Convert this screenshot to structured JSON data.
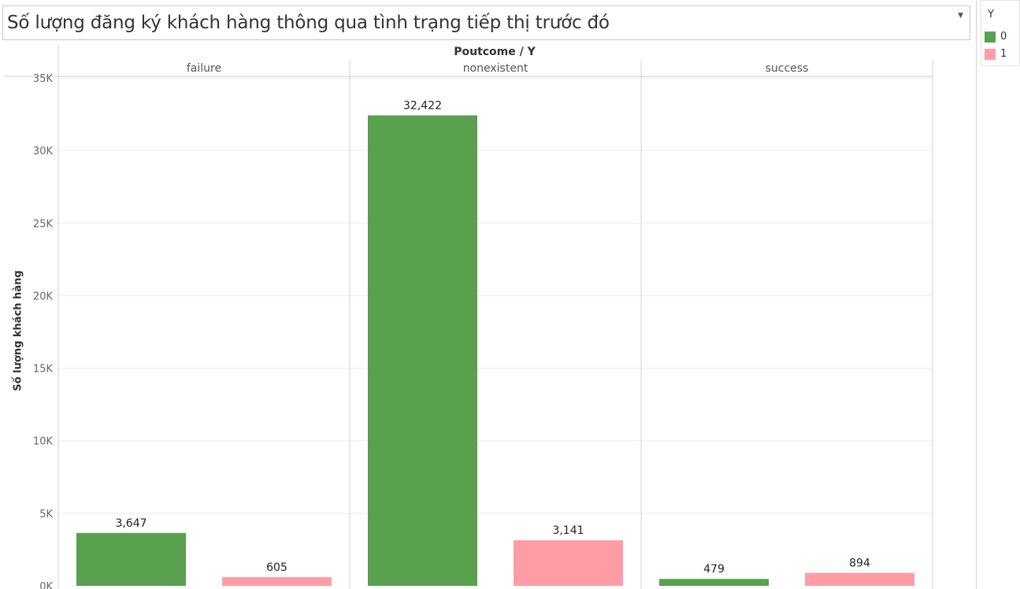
{
  "dashboard": {
    "title": "Số lượng đăng ký khách hàng thông qua tình trạng tiếp thị trước đó",
    "header": "Poutcome / Y",
    "y_axis_label": "Số lượng khách hàng"
  },
  "legend": {
    "title": "Y",
    "items": [
      {
        "label": "0",
        "color": "#59a14f"
      },
      {
        "label": "1",
        "color": "#ff9da7"
      }
    ]
  },
  "chart_data": {
    "type": "bar",
    "categories": [
      "failure",
      "nonexistent",
      "success"
    ],
    "series": [
      {
        "name": "0",
        "color": "#59a14f",
        "values": [
          3647,
          32422,
          479
        ],
        "labels": [
          "3,647",
          "32,422",
          "479"
        ]
      },
      {
        "name": "1",
        "color": "#ff9da7",
        "values": [
          605,
          3141,
          894
        ],
        "labels": [
          "605",
          "3,141",
          "894"
        ]
      }
    ],
    "ylabel": "Số lượng khách hàng",
    "ylim": [
      0,
      35000
    ],
    "yticks": [
      0,
      5000,
      10000,
      15000,
      20000,
      25000,
      30000,
      35000
    ],
    "ytick_labels": [
      "0K",
      "5K",
      "10K",
      "15K",
      "20K",
      "25K",
      "30K",
      "35K"
    ],
    "grid": true,
    "legend_position": "top-right"
  }
}
